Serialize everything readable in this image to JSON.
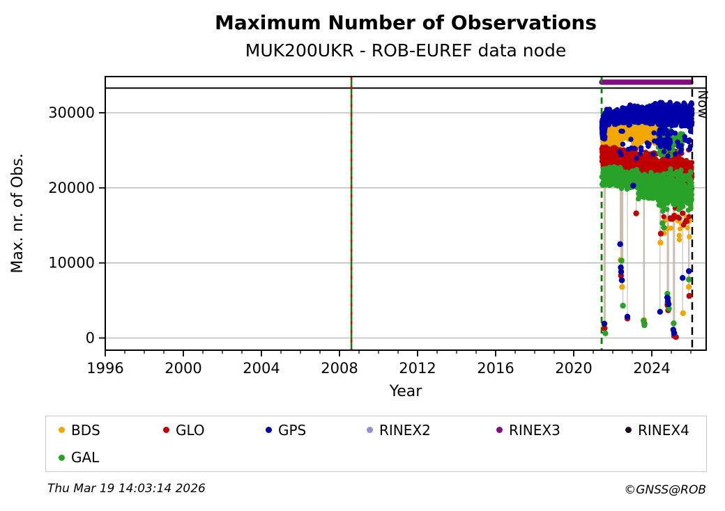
{
  "header": {
    "title": "Maximum Number of Observations",
    "subtitle": "MUK200UKR - ROB-EUREF data node"
  },
  "footer": {
    "timestamp": "Thu Mar 19 14:03:14 2026",
    "credit": "©GNSS@ROB"
  },
  "legend": {
    "items": [
      {
        "label": "BDS",
        "color": "#f0a800"
      },
      {
        "label": "GLO",
        "color": "#c00000"
      },
      {
        "label": "GPS",
        "color": "#0000aa"
      },
      {
        "label": "RINEX2",
        "color": "#918ed4"
      },
      {
        "label": "RINEX3",
        "color": "#800e80"
      },
      {
        "label": "RINEX4",
        "color": "#200a20"
      },
      {
        "label": "GAL",
        "color": "#28a228"
      }
    ]
  },
  "chart_data": {
    "type": "scatter",
    "title": "Maximum Number of Observations",
    "subtitle": "MUK200UKR - ROB-EUREF data node",
    "xlabel": "Year",
    "ylabel": "Max. nr. of Obs.",
    "xlim": [
      1996,
      2026.8
    ],
    "ylim": [
      -1600,
      34800
    ],
    "x_ticks": [
      1996,
      2000,
      2004,
      2008,
      2012,
      2016,
      2020,
      2024
    ],
    "x_minor_interval": 1,
    "y_ticks": [
      0,
      10000,
      20000,
      30000
    ],
    "grid": "horizontal",
    "gridline_color": "#b4b4b4",
    "dropline_color": "#c9b9a4",
    "availability": {
      "rinex3": {
        "start": 2021.43,
        "end": 2026.0,
        "color": "#800e80"
      }
    },
    "events": [
      {
        "name": "station-change-2008",
        "x": 2008.61,
        "style": "green-red-dashed",
        "green": "#0a7d0a",
        "red": "#cc1100"
      },
      {
        "name": "station-change-2021",
        "x": 2021.43,
        "style": "green-dashed",
        "green": "#0a7d0a"
      },
      {
        "name": "now-line",
        "x": 2026.07,
        "style": "black-dashed",
        "label": "Now"
      }
    ],
    "series": [
      {
        "name": "BDS",
        "color": "#f0a800",
        "bands": [
          [
            2021.44,
            2021.78,
            25600,
            29300,
            130
          ],
          [
            2021.74,
            2022.38,
            24600,
            28200,
            170
          ],
          [
            2022.34,
            2023.06,
            26300,
            29400,
            195
          ],
          [
            2023.02,
            2023.4,
            25200,
            28600,
            85
          ],
          [
            2023.36,
            2024.34,
            25800,
            28800,
            145
          ],
          [
            2024.3,
            2026.05,
            17600,
            23600,
            215
          ],
          [
            2024.55,
            2026.0,
            13000,
            17600,
            20
          ]
        ],
        "points": [
          [
            2021.55,
            1600
          ],
          [
            2022.4,
            10400
          ],
          [
            2022.44,
            9100
          ],
          [
            2022.48,
            6800
          ],
          [
            2023.6,
            2400
          ],
          [
            2024.44,
            12700
          ],
          [
            2024.8,
            4700
          ],
          [
            2024.84,
            4100
          ],
          [
            2025.12,
            950
          ],
          [
            2025.16,
            420
          ],
          [
            2025.6,
            3300
          ],
          [
            2025.9,
            6800
          ]
        ]
      },
      {
        "name": "GLO",
        "color": "#c00000",
        "bands": [
          [
            2021.44,
            2022.42,
            22700,
            25600,
            235
          ],
          [
            2022.38,
            2023.34,
            21500,
            25300,
            235
          ],
          [
            2023.3,
            2024.44,
            19800,
            25100,
            275
          ],
          [
            2024.4,
            2026.06,
            17900,
            25400,
            365
          ],
          [
            2024.6,
            2025.95,
            14300,
            17900,
            17
          ]
        ],
        "points": [
          [
            2021.58,
            1300
          ],
          [
            2022.42,
            8300
          ],
          [
            2022.75,
            2600
          ],
          [
            2023.2,
            16600
          ],
          [
            2023.62,
            1900
          ],
          [
            2024.46,
            13900
          ],
          [
            2024.8,
            4400
          ],
          [
            2024.84,
            3700
          ],
          [
            2025.14,
            300
          ],
          [
            2025.24,
            120
          ],
          [
            2025.92,
            5600
          ]
        ]
      },
      {
        "name": "GAL",
        "color": "#28a228",
        "bands": [
          [
            2021.44,
            2022.42,
            20200,
            22900,
            215
          ],
          [
            2022.38,
            2023.34,
            19700,
            22500,
            210
          ],
          [
            2023.3,
            2024.34,
            18300,
            22100,
            215
          ],
          [
            2024.3,
            2025.0,
            23800,
            28600,
            105
          ],
          [
            2025.0,
            2025.6,
            24500,
            27800,
            40
          ],
          [
            2024.3,
            2026.06,
            16600,
            22600,
            250
          ]
        ],
        "points": [
          [
            2021.62,
            620
          ],
          [
            2022.45,
            10300
          ],
          [
            2022.48,
            7700
          ],
          [
            2022.52,
            4300
          ],
          [
            2023.58,
            2300
          ],
          [
            2023.62,
            1700
          ],
          [
            2024.55,
            15300
          ],
          [
            2024.62,
            14700
          ],
          [
            2024.8,
            5900
          ],
          [
            2024.84,
            5300
          ],
          [
            2024.88,
            3900
          ],
          [
            2025.12,
            1950
          ],
          [
            2025.16,
            640
          ],
          [
            2025.9,
            7800
          ]
        ]
      },
      {
        "name": "GPS",
        "color": "#0000aa",
        "bands": [
          [
            2021.44,
            2021.62,
            26000,
            30200,
            70
          ],
          [
            2021.6,
            2022.1,
            28300,
            30500,
            110
          ],
          [
            2022.05,
            2022.92,
            28300,
            30900,
            175
          ],
          [
            2022.88,
            2024.0,
            28500,
            31100,
            215
          ],
          [
            2023.95,
            2026.06,
            28100,
            31600,
            415
          ],
          [
            2022.3,
            2026.0,
            23500,
            28200,
            45
          ],
          [
            2024.3,
            2025.1,
            25500,
            28500,
            26
          ]
        ],
        "points": [
          [
            2021.57,
            1900
          ],
          [
            2022.38,
            12500
          ],
          [
            2022.41,
            9400
          ],
          [
            2022.43,
            8800
          ],
          [
            2022.46,
            7700
          ],
          [
            2022.75,
            2850
          ],
          [
            2023.05,
            20300
          ],
          [
            2024.42,
            3500
          ],
          [
            2024.79,
            5400
          ],
          [
            2024.82,
            4900
          ],
          [
            2024.86,
            4500
          ],
          [
            2025.1,
            1100
          ],
          [
            2025.14,
            650
          ],
          [
            2025.58,
            8000
          ],
          [
            2025.9,
            8900
          ]
        ]
      }
    ],
    "drop_lines": [
      [
        2021.55,
        26000,
        1500
      ],
      [
        2021.58,
        22600,
        1250
      ],
      [
        2021.62,
        20800,
        580
      ],
      [
        2022.38,
        28500,
        12400
      ],
      [
        2022.41,
        27800,
        9200
      ],
      [
        2022.43,
        26200,
        8200
      ],
      [
        2022.45,
        22100,
        10200
      ],
      [
        2022.48,
        21400,
        6700
      ],
      [
        2022.52,
        20800,
        4200
      ],
      [
        2022.75,
        23300,
        2500
      ],
      [
        2023.2,
        21800,
        16500
      ],
      [
        2023.58,
        20900,
        2200
      ],
      [
        2023.6,
        21300,
        1800
      ],
      [
        2023.62,
        20300,
        1600
      ],
      [
        2024.42,
        20100,
        3400
      ],
      [
        2024.44,
        21000,
        12600
      ],
      [
        2024.55,
        18900,
        14700
      ],
      [
        2024.79,
        20900,
        4300
      ],
      [
        2024.82,
        20000,
        3600
      ],
      [
        2024.86,
        19400,
        3800
      ],
      [
        2025.1,
        18800,
        1000
      ],
      [
        2025.14,
        17900,
        250
      ],
      [
        2025.17,
        17400,
        380
      ],
      [
        2025.58,
        19000,
        3200
      ],
      [
        2025.88,
        19800,
        5500
      ],
      [
        2025.92,
        19400,
        6700
      ]
    ]
  }
}
